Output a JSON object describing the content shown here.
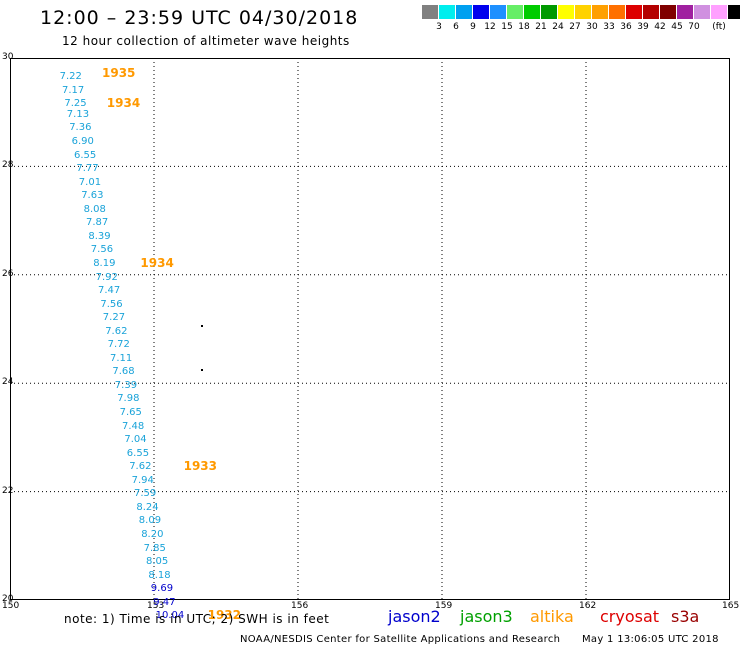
{
  "header": {
    "title": "12:00 – 23:59 UTC 04/30/2018",
    "subtitle": "12 hour collection of altimeter wave heights"
  },
  "legend": {
    "colors": [
      "#808080",
      "#00eeee",
      "#00a0f0",
      "#0000ee",
      "#1e90ff",
      "#66ee66",
      "#00cc00",
      "#009a00",
      "#ffff00",
      "#ffd200",
      "#ffa000",
      "#ff7000",
      "#dd0000",
      "#b40000",
      "#800000",
      "#a020a0",
      "#d090e0",
      "#ffa0ff",
      "#000000"
    ],
    "labels": [
      "3",
      "6",
      "9",
      "12",
      "15",
      "18",
      "21",
      "24",
      "27",
      "30",
      "33",
      "36",
      "39",
      "42",
      "45",
      "70",
      "(ft)"
    ]
  },
  "axes": {
    "lat_labels": [
      "30",
      "28",
      "26",
      "24",
      "22",
      "20"
    ],
    "lon_labels": [
      "150",
      "153",
      "156",
      "159",
      "162",
      "165"
    ]
  },
  "chart_data": {
    "type": "scatter",
    "xlim": [
      150,
      165
    ],
    "ylim": [
      20,
      30
    ],
    "units": "ft",
    "observations": [
      {
        "lat": 29.65,
        "lon": 151.2,
        "swh": "7.22",
        "sat": "jason3"
      },
      {
        "lat": 29.4,
        "lon": 151.25,
        "swh": "7.17",
        "sat": "jason3"
      },
      {
        "lat": 29.15,
        "lon": 151.3,
        "swh": "7.25",
        "sat": "jason3"
      },
      {
        "lat": 28.95,
        "lon": 151.35,
        "swh": "7.13",
        "sat": "jason3"
      },
      {
        "lat": 28.7,
        "lon": 151.4,
        "swh": "7.36",
        "sat": "jason3"
      },
      {
        "lat": 28.45,
        "lon": 151.45,
        "swh": "6.90",
        "sat": "jason3"
      },
      {
        "lat": 28.2,
        "lon": 151.5,
        "swh": "6.55",
        "sat": "jason3"
      },
      {
        "lat": 27.95,
        "lon": 151.55,
        "swh": "7.77",
        "sat": "jason3"
      },
      {
        "lat": 27.7,
        "lon": 151.6,
        "swh": "7.01",
        "sat": "jason3"
      },
      {
        "lat": 27.45,
        "lon": 151.65,
        "swh": "7.63",
        "sat": "jason3"
      },
      {
        "lat": 27.2,
        "lon": 151.7,
        "swh": "8.08",
        "sat": "jason3"
      },
      {
        "lat": 26.95,
        "lon": 151.75,
        "swh": "7.87",
        "sat": "jason3"
      },
      {
        "lat": 26.7,
        "lon": 151.8,
        "swh": "8.39",
        "sat": "jason3"
      },
      {
        "lat": 26.45,
        "lon": 151.85,
        "swh": "7.56",
        "sat": "jason3"
      },
      {
        "lat": 26.2,
        "lon": 151.9,
        "swh": "8.19",
        "sat": "jason3"
      },
      {
        "lat": 25.95,
        "lon": 151.95,
        "swh": "7.92",
        "sat": "jason3"
      },
      {
        "lat": 25.7,
        "lon": 152.0,
        "swh": "7.47",
        "sat": "jason3"
      },
      {
        "lat": 25.45,
        "lon": 152.05,
        "swh": "7.56",
        "sat": "jason3"
      },
      {
        "lat": 25.2,
        "lon": 152.1,
        "swh": "7.27",
        "sat": "jason3"
      },
      {
        "lat": 24.95,
        "lon": 152.15,
        "swh": "7.62",
        "sat": "jason3"
      },
      {
        "lat": 24.7,
        "lon": 152.2,
        "swh": "7.72",
        "sat": "jason3"
      },
      {
        "lat": 24.45,
        "lon": 152.25,
        "swh": "7.11",
        "sat": "jason3"
      },
      {
        "lat": 24.2,
        "lon": 152.3,
        "swh": "7.68",
        "sat": "jason3"
      },
      {
        "lat": 23.95,
        "lon": 152.35,
        "swh": "7.39",
        "sat": "jason3"
      },
      {
        "lat": 23.7,
        "lon": 152.4,
        "swh": "7.98",
        "sat": "jason3"
      },
      {
        "lat": 23.45,
        "lon": 152.45,
        "swh": "7.65",
        "sat": "jason3"
      },
      {
        "lat": 23.2,
        "lon": 152.5,
        "swh": "7.48",
        "sat": "jason3"
      },
      {
        "lat": 22.95,
        "lon": 152.55,
        "swh": "7.04",
        "sat": "jason3"
      },
      {
        "lat": 22.7,
        "lon": 152.6,
        "swh": "6.55",
        "sat": "jason3"
      },
      {
        "lat": 22.45,
        "lon": 152.65,
        "swh": "7.62",
        "sat": "jason3"
      },
      {
        "lat": 22.2,
        "lon": 152.7,
        "swh": "7.94",
        "sat": "jason3"
      },
      {
        "lat": 21.95,
        "lon": 152.75,
        "swh": "7.59",
        "sat": "jason3"
      },
      {
        "lat": 21.7,
        "lon": 152.8,
        "swh": "8.24",
        "sat": "jason3"
      },
      {
        "lat": 21.45,
        "lon": 152.85,
        "swh": "8.09",
        "sat": "jason3"
      },
      {
        "lat": 21.2,
        "lon": 152.9,
        "swh": "8.20",
        "sat": "jason3"
      },
      {
        "lat": 20.95,
        "lon": 152.95,
        "swh": "7.85",
        "sat": "jason3"
      },
      {
        "lat": 20.7,
        "lon": 153.0,
        "swh": "8.05",
        "sat": "jason3"
      },
      {
        "lat": 20.45,
        "lon": 153.05,
        "swh": "8.18",
        "sat": "jason3"
      },
      {
        "lat": 20.2,
        "lon": 153.1,
        "swh": "9.69",
        "sat": "jason2"
      },
      {
        "lat": 19.95,
        "lon": 153.15,
        "swh": "9.47",
        "sat": "jason2"
      },
      {
        "lat": 19.7,
        "lon": 153.2,
        "swh": "10.04",
        "sat": "jason2"
      }
    ],
    "revisions": [
      {
        "lat": 29.7,
        "lon": 152.0,
        "label": "1935"
      },
      {
        "lat": 29.15,
        "lon": 152.1,
        "label": "1934"
      },
      {
        "lat": 26.2,
        "lon": 152.8,
        "label": "1934"
      },
      {
        "lat": 22.45,
        "lon": 153.7,
        "label": "1933"
      },
      {
        "lat": 19.7,
        "lon": 154.2,
        "label": "1932"
      }
    ],
    "points": [
      {
        "lat": 25.05,
        "lon": 154.0
      },
      {
        "lat": 24.25,
        "lon": 154.0
      }
    ]
  },
  "satellites": [
    {
      "name": "jason2",
      "color": "#0000cc"
    },
    {
      "name": "jason3",
      "color": "#00a000"
    },
    {
      "name": "altika",
      "color": "#ff9900"
    },
    {
      "name": "cryosat",
      "color": "#dd0000"
    },
    {
      "name": "s3a",
      "color": "#990000"
    }
  ],
  "styles": {
    "obs_color": "#1aa3d9",
    "obs_high_color": "#0000cc",
    "revision_color": "#ff9900"
  },
  "footer": {
    "note": "note: 1) Time is in UTC; 2) SWH is in feet",
    "credit": "NOAA/NESDIS Center for Satellite Applications and Research",
    "timestamp": "May  1 13:06:05 UTC 2018"
  }
}
